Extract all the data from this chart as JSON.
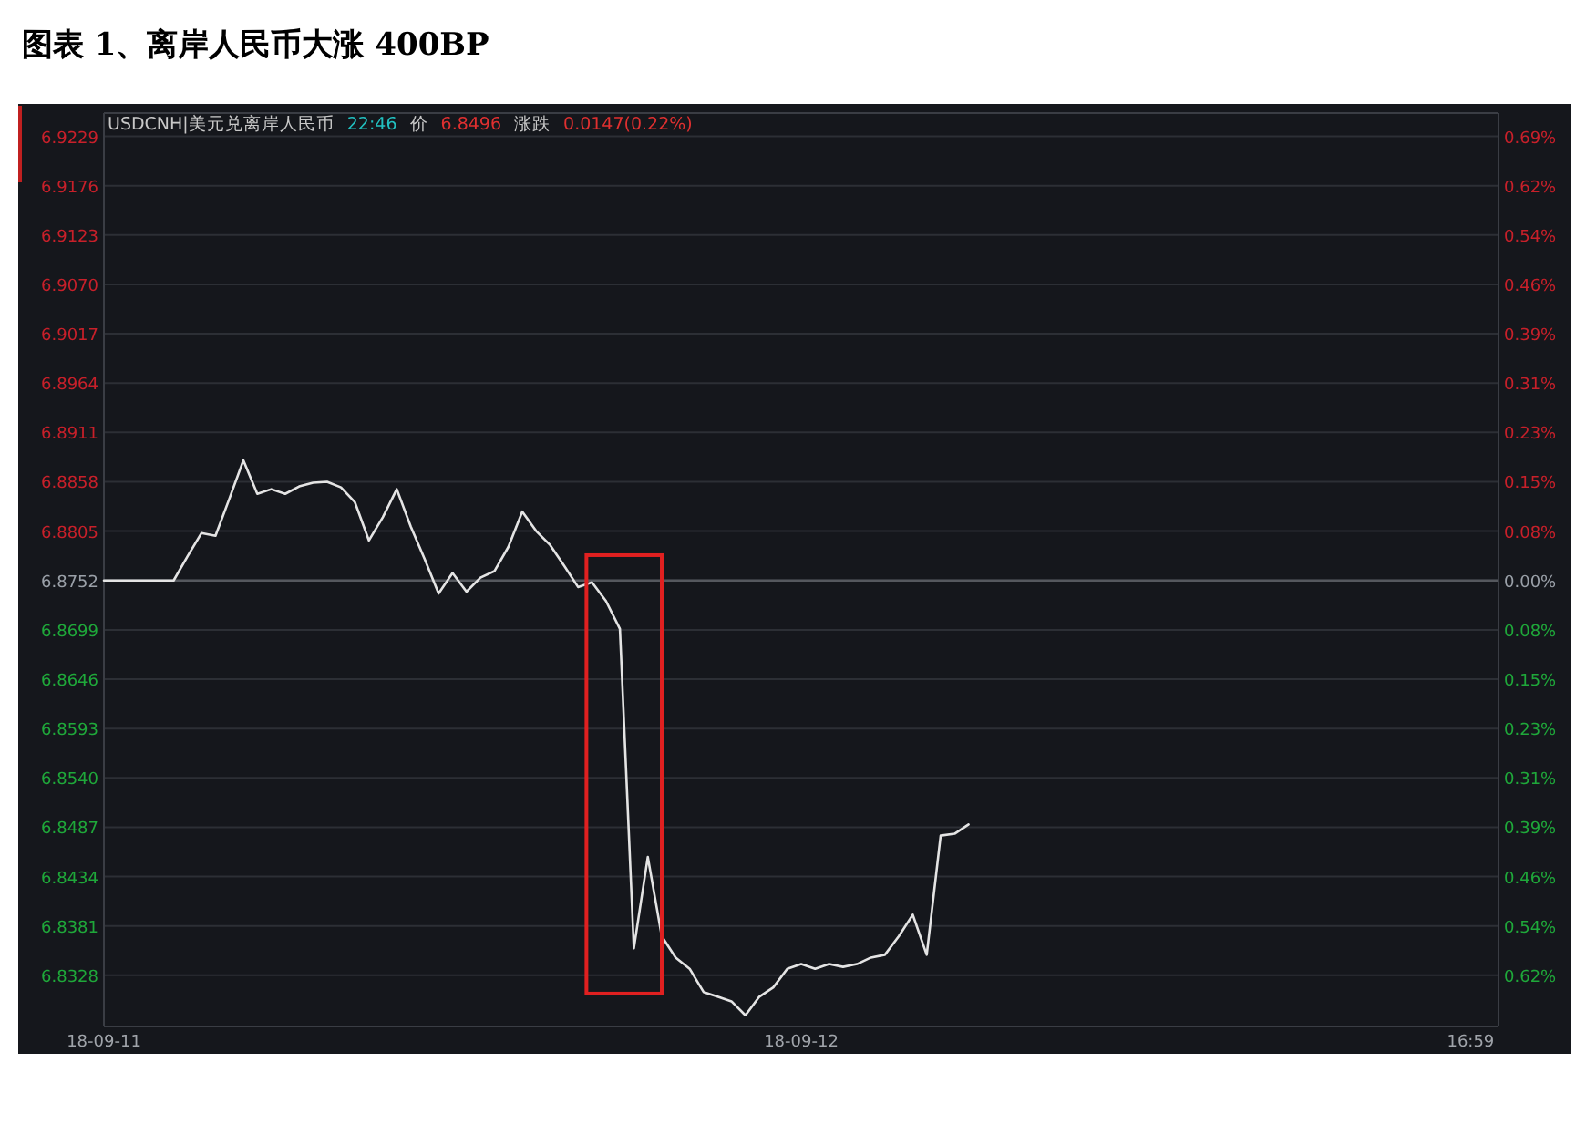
{
  "chart_data": {
    "type": "line",
    "title": "图表 1、离岸人民币大涨 400BP",
    "subtitle": "USDCNH|美元兑离岸人民币 22:46 价 6.8496 涨跌 0.0147(0.22%)",
    "categories": [
      "18-09-11",
      null,
      null,
      null,
      null,
      null,
      null,
      null,
      null,
      null,
      null,
      null,
      null,
      null,
      null,
      null,
      null,
      null,
      null,
      null,
      null,
      null,
      null,
      null,
      null,
      null,
      null,
      null,
      null,
      null,
      null,
      null,
      null,
      null,
      null,
      null,
      null,
      null,
      null,
      null,
      null,
      null,
      null,
      null,
      null,
      null,
      null,
      null,
      null,
      null,
      "18-09-12",
      null,
      null,
      null,
      null,
      null,
      null,
      null,
      null,
      null,
      null,
      null,
      null,
      null,
      null,
      null,
      null,
      null,
      null,
      null,
      null,
      null,
      null,
      null,
      null,
      null,
      null,
      null,
      null,
      null,
      null,
      null,
      null,
      null,
      null,
      null,
      null,
      null,
      null,
      null,
      null,
      null,
      null,
      null,
      null,
      null,
      null,
      null,
      "16:59",
      null,
      null
    ],
    "series": [
      {
        "color": "#e4e4e4",
        "values": [
          6.8752,
          6.8752,
          6.8752,
          6.8752,
          6.8752,
          6.8752,
          6.8778,
          6.8803,
          6.88,
          6.884,
          6.8881,
          6.8845,
          6.885,
          6.8845,
          6.8853,
          6.8857,
          6.8858,
          6.8852,
          6.8836,
          6.8795,
          6.882,
          6.885,
          6.881,
          6.8775,
          6.8738,
          6.876,
          6.874,
          6.8755,
          6.8762,
          6.8788,
          6.8826,
          6.8805,
          6.879,
          6.8768,
          6.8745,
          6.875,
          6.873,
          6.87,
          6.8357,
          6.8455,
          6.837,
          6.8347,
          6.8335,
          6.831,
          6.8305,
          6.83,
          6.8285,
          6.8305,
          6.8315,
          6.8335,
          6.834,
          6.8335,
          6.834,
          6.8337,
          6.834,
          6.8347,
          6.835,
          6.837,
          6.8393,
          6.835,
          6.8478,
          6.848,
          6.849,
          null,
          null,
          null,
          null,
          null,
          null,
          null,
          null,
          null,
          null,
          null,
          null,
          null,
          null,
          null,
          null,
          null,
          null,
          null,
          null,
          null,
          null,
          null,
          null,
          null,
          null,
          null,
          null,
          null,
          null,
          null,
          null,
          null,
          null,
          null,
          null,
          null,
          null
        ]
      }
    ],
    "ylim": [
      6.8273,
      6.9254
    ],
    "yticks": [
      6.9229,
      6.9176,
      6.9123,
      {
        "value": 6.907,
        "label": "6.9070"
      },
      6.9017,
      6.8964,
      6.8911,
      6.8858,
      6.8805,
      6.8752,
      6.8699,
      6.8646,
      6.8593,
      {
        "value": 6.854,
        "label": "6.8540"
      },
      6.8487,
      6.8434,
      6.8381,
      6.8328
    ],
    "y2lim": [
      -0.6967,
      0.7302
    ],
    "y2ticks": [
      {
        "value": 0.6938,
        "label": "0.69%"
      },
      {
        "value": 0.6167,
        "label": "0.62%"
      },
      {
        "value": 0.5396,
        "label": "0.54%"
      },
      {
        "value": 0.4625,
        "label": "0.46%"
      },
      {
        "value": 0.3854,
        "label": "0.39%"
      },
      {
        "value": 0.3084,
        "label": "0.31%"
      },
      {
        "value": 0.2313,
        "label": "0.23%"
      },
      {
        "value": 0.1542,
        "label": "0.15%"
      },
      {
        "value": 0.0771,
        "label": "0.08%"
      },
      {
        "value": 0,
        "label": "0.00%"
      },
      {
        "value": -0.0771,
        "label": "0.08%"
      },
      {
        "value": -0.1542,
        "label": "0.15%"
      },
      {
        "value": -0.2313,
        "label": "0.23%"
      },
      {
        "value": -0.3084,
        "label": "0.31%"
      },
      {
        "value": -0.3854,
        "label": "0.39%"
      },
      {
        "value": -0.4625,
        "label": "0.46%"
      },
      {
        "value": -0.5396,
        "label": "0.54%"
      },
      {
        "value": -0.6167,
        "label": "0.62%"
      }
    ],
    "ref_lines": [
      {
        "axis": "y",
        "value": 6.8752,
        "color": "#55585e"
      }
    ],
    "grid": "y"
  }
}
